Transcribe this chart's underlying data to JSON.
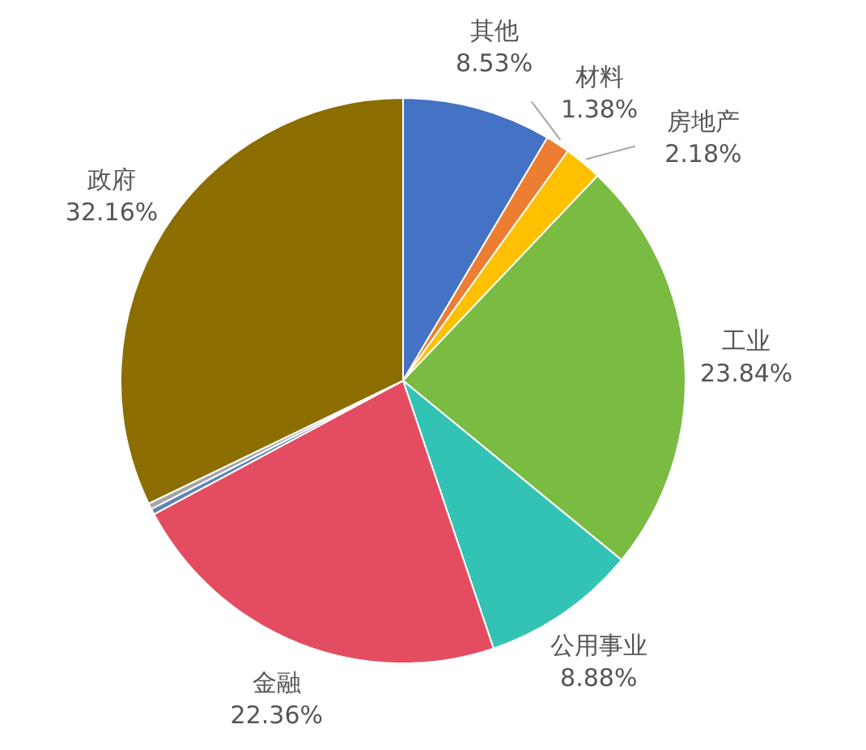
{
  "chart_data": {
    "type": "pie",
    "categories": [
      "其他",
      "材料",
      "房地产",
      "工业",
      "公用事业",
      "金融",
      null,
      null,
      "政府"
    ],
    "values": [
      8.53,
      1.38,
      2.18,
      23.84,
      8.88,
      22.36,
      0.33,
      0.34,
      32.16
    ],
    "colors": [
      "#4472c4",
      "#ed7d31",
      "#ffc000",
      "#7abb42",
      "#33c3b5",
      "#e44d61",
      "#5b86b5",
      "#a5a5a5",
      "#8c6d00"
    ],
    "value_labels": [
      "8.53%",
      "1.38%",
      "2.18%",
      "23.84%",
      "8.88%",
      "22.36%",
      null,
      null,
      "32.16%"
    ],
    "legend": false
  }
}
